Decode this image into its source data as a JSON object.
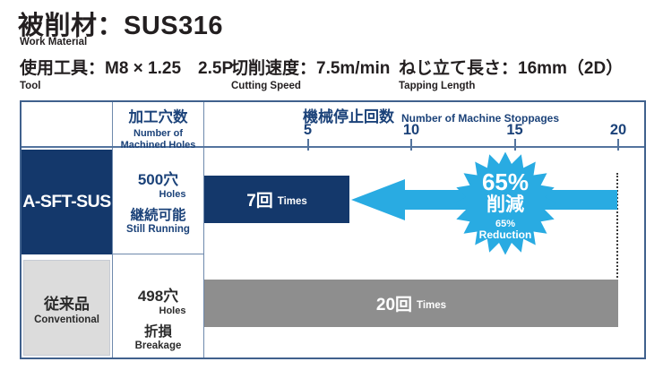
{
  "header": {
    "title_jp": "被削材：SUS316",
    "title_en": "Work Material",
    "specs": [
      {
        "jp": "使用工具：M8 × 1.25　2.5P",
        "en": "Tool"
      },
      {
        "jp": "切削速度：7.5m/min",
        "en": "Cutting Speed"
      },
      {
        "jp": "ねじ立て長さ：16mm（2D）",
        "en": "Tapping Length"
      }
    ]
  },
  "table": {
    "holes_header": {
      "jp": "加工穴数",
      "en_line1": "Number of",
      "en_line2": "Machined Holes"
    },
    "chart_header": {
      "jp": "機械停止回数",
      "en": "Number of Machine Stoppages"
    },
    "rows": [
      {
        "label": "A-SFT-SUS",
        "holes_jp": "500穴",
        "holes_en": "Holes",
        "result_jp": "継続可能",
        "result_en": "Still Running",
        "stoppages_jp": "7回",
        "stoppages_en": "Times"
      },
      {
        "label": "従来品",
        "label_en": "Conventional",
        "holes_jp": "498穴",
        "holes_en": "Holes",
        "result_jp": "折損",
        "result_en": "Breakage",
        "stoppages_jp": "20回",
        "stoppages_en": "Times"
      }
    ]
  },
  "badge": {
    "percent_jp": "65%",
    "reduction_jp": "削減",
    "percent_en": "65%",
    "reduction_en": "Reduction"
  },
  "colors": {
    "navy": "#14386b",
    "navy_text": "#1b4279",
    "light_blue": "#29abe2",
    "bar_gray": "#8e8e8e",
    "cell_gray": "#dcdcdc",
    "text_dark": "#231f20",
    "border": "#40618d",
    "grid": "#6e89ac"
  },
  "chart_data": {
    "type": "bar",
    "orientation": "horizontal",
    "title": "機械停止回数 / Number of Machine Stoppages",
    "categories": [
      "A-SFT-SUS",
      "従来品 (Conventional)"
    ],
    "values": [
      7,
      20
    ],
    "value_labels": [
      "7回 Times",
      "20回 Times"
    ],
    "x_ticks": [
      5,
      10,
      15,
      20
    ],
    "xlim": [
      0,
      21.4
    ],
    "bar_colors": [
      "#14386b",
      "#8e8e8e"
    ],
    "grid": false,
    "legend_position": "none",
    "annotations": [
      "65% 削減 (65% Reduction) — arrow from 20 down to 7",
      "A-SFT-SUS: 500穴 Holes, 継続可能 Still Running",
      "従来品 Conventional: 498穴 Holes, 折損 Breakage"
    ]
  }
}
